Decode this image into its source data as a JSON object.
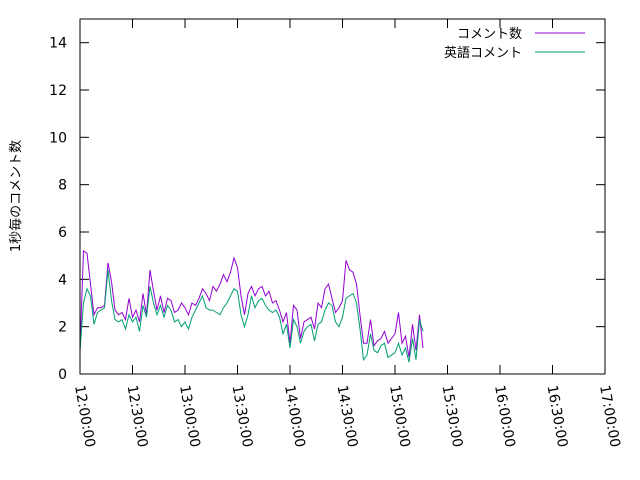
{
  "chart_data": {
    "type": "line",
    "ylabel": "1秒毎のコメント数",
    "ylim": [
      0,
      15
    ],
    "yticks": [
      0,
      2,
      4,
      6,
      8,
      10,
      12,
      14
    ],
    "xlim": [
      "12:00:00",
      "17:00:00"
    ],
    "xticks": [
      "12:00:00",
      "12:30:00",
      "13:00:00",
      "13:30:00",
      "14:00:00",
      "14:30:00",
      "15:00:00",
      "15:30:00",
      "16:00:00",
      "16:30:00",
      "17:00:00"
    ],
    "x_step_minutes": 2,
    "legend_position": "top-right",
    "series": [
      {
        "name": "コメント数",
        "color": "#9400d3",
        "values": [
          1.0,
          5.2,
          5.1,
          3.8,
          2.5,
          2.8,
          2.8,
          2.9,
          4.7,
          3.9,
          2.7,
          2.5,
          2.6,
          2.3,
          3.2,
          2.4,
          2.7,
          2.2,
          3.4,
          2.5,
          4.4,
          3.5,
          2.7,
          3.3,
          2.6,
          3.2,
          3.1,
          2.6,
          2.7,
          3.0,
          2.8,
          2.5,
          3.0,
          2.9,
          3.2,
          3.6,
          3.4,
          3.1,
          3.7,
          3.5,
          3.8,
          4.2,
          3.9,
          4.3,
          4.9,
          4.5,
          3.3,
          2.5,
          3.4,
          3.7,
          3.3,
          3.6,
          3.7,
          3.3,
          3.5,
          3.0,
          3.1,
          2.7,
          2.2,
          2.6,
          1.3,
          2.9,
          2.7,
          1.5,
          2.2,
          2.3,
          2.4,
          1.9,
          3.0,
          2.8,
          3.6,
          3.8,
          3.2,
          2.6,
          2.8,
          3.1,
          4.8,
          4.4,
          4.3,
          3.8,
          2.5,
          1.3,
          1.3,
          2.3,
          1.2,
          1.4,
          1.5,
          1.8,
          1.3,
          1.5,
          1.7,
          2.6,
          1.3,
          1.6,
          0.7,
          2.1,
          1.0,
          2.5,
          1.1
        ]
      },
      {
        "name": "英語コメント",
        "color": "#009e73",
        "values": [
          1.0,
          3.0,
          3.6,
          3.3,
          2.1,
          2.6,
          2.7,
          2.8,
          4.4,
          3.1,
          2.3,
          2.2,
          2.3,
          1.9,
          2.5,
          2.2,
          2.4,
          1.8,
          2.9,
          2.4,
          3.7,
          3.0,
          2.5,
          2.9,
          2.4,
          2.9,
          2.7,
          2.2,
          2.3,
          2.0,
          2.2,
          1.9,
          2.4,
          2.7,
          3.0,
          3.3,
          2.8,
          2.7,
          2.7,
          2.6,
          2.5,
          2.8,
          3.0,
          3.3,
          3.6,
          3.5,
          2.5,
          2.0,
          2.5,
          3.3,
          2.8,
          3.1,
          3.2,
          2.9,
          2.7,
          2.6,
          2.7,
          2.4,
          1.7,
          2.1,
          1.1,
          2.3,
          2.0,
          1.3,
          1.8,
          2.0,
          2.1,
          1.4,
          2.1,
          2.2,
          2.7,
          3.0,
          2.9,
          2.2,
          2.0,
          2.4,
          3.2,
          3.3,
          3.4,
          3.0,
          1.9,
          0.6,
          0.8,
          1.7,
          1.0,
          0.9,
          1.2,
          1.3,
          0.7,
          0.8,
          0.9,
          1.3,
          0.8,
          1.1,
          0.5,
          1.5,
          0.6,
          2.3,
          1.8
        ]
      }
    ]
  }
}
